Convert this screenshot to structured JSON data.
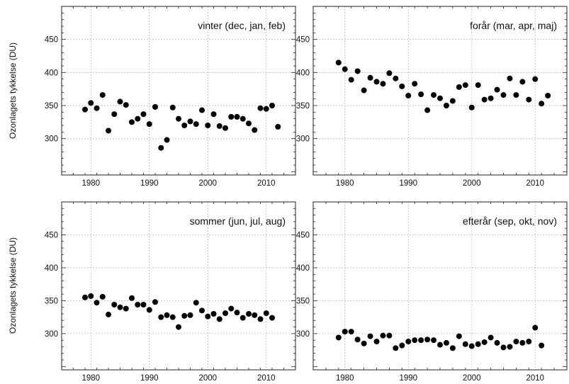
{
  "chart_data": [
    {
      "type": "scatter",
      "title": "vinter (dec, jan, feb)",
      "ylabel": "Ozonlagets tykkelse (DU)",
      "xlabel": "",
      "xlim": [
        1975,
        2015
      ],
      "ylim": [
        245,
        500
      ],
      "xticks": [
        1980,
        1990,
        2000,
        2010
      ],
      "yticks": [
        300,
        350,
        400,
        450
      ],
      "grid": true,
      "x": [
        1979,
        1980,
        1981,
        1982,
        1983,
        1984,
        1985,
        1986,
        1987,
        1988,
        1989,
        1990,
        1991,
        1992,
        1993,
        1994,
        1995,
        1996,
        1997,
        1998,
        1999,
        2000,
        2001,
        2002,
        2003,
        2004,
        2005,
        2006,
        2007,
        2008,
        2009,
        2010,
        2011,
        2012
      ],
      "y": [
        344,
        354,
        346,
        366,
        312,
        337,
        356,
        351,
        325,
        330,
        337,
        322,
        348,
        286,
        298,
        347,
        330,
        320,
        326,
        322,
        343,
        320,
        337,
        319,
        316,
        333,
        333,
        330,
        323,
        313,
        346,
        345,
        350,
        318
      ]
    },
    {
      "type": "scatter",
      "title": "forår (mar, apr, maj)",
      "ylabel": "",
      "xlabel": "",
      "xlim": [
        1975,
        2015
      ],
      "ylim": [
        245,
        500
      ],
      "xticks": [
        1980,
        1990,
        2000,
        2010
      ],
      "yticks": [
        300,
        350,
        400,
        450
      ],
      "grid": true,
      "x": [
        1979,
        1980,
        1981,
        1982,
        1983,
        1984,
        1985,
        1986,
        1987,
        1988,
        1989,
        1990,
        1991,
        1992,
        1993,
        1994,
        1995,
        1996,
        1997,
        1998,
        1999,
        2000,
        2001,
        2002,
        2003,
        2004,
        2005,
        2006,
        2007,
        2008,
        2009,
        2010,
        2011,
        2012
      ],
      "y": [
        415,
        405,
        389,
        402,
        373,
        392,
        386,
        383,
        399,
        391,
        379,
        365,
        383,
        367,
        343,
        366,
        361,
        350,
        357,
        378,
        381,
        347,
        381,
        359,
        361,
        374,
        366,
        391,
        366,
        386,
        359,
        390,
        353,
        365
      ]
    },
    {
      "type": "scatter",
      "title": "sommer (jun, jul, aug)",
      "ylabel": "Ozonlagets tykkelse (DU)",
      "xlabel": "",
      "xlim": [
        1975,
        2015
      ],
      "ylim": [
        245,
        500
      ],
      "xticks": [
        1980,
        1990,
        2000,
        2010
      ],
      "yticks": [
        300,
        350,
        400,
        450
      ],
      "grid": true,
      "x": [
        1979,
        1980,
        1981,
        1982,
        1983,
        1984,
        1985,
        1986,
        1987,
        1988,
        1989,
        1990,
        1991,
        1992,
        1993,
        1994,
        1995,
        1996,
        1997,
        1998,
        1999,
        2000,
        2001,
        2002,
        2003,
        2004,
        2005,
        2006,
        2007,
        2008,
        2009,
        2010,
        2011
      ],
      "y": [
        355,
        357,
        347,
        356,
        329,
        344,
        340,
        338,
        354,
        344,
        344,
        336,
        348,
        325,
        328,
        325,
        310,
        327,
        328,
        347,
        335,
        326,
        330,
        322,
        331,
        338,
        332,
        324,
        330,
        328,
        322,
        331,
        324
      ]
    },
    {
      "type": "scatter",
      "title": "efterår (sep, okt, nov)",
      "ylabel": "",
      "xlabel": "",
      "xlim": [
        1975,
        2015
      ],
      "ylim": [
        245,
        500
      ],
      "xticks": [
        1980,
        1990,
        2000,
        2010
      ],
      "yticks": [
        300,
        350,
        400,
        450
      ],
      "grid": true,
      "x": [
        1979,
        1980,
        1981,
        1982,
        1983,
        1984,
        1985,
        1986,
        1987,
        1988,
        1989,
        1990,
        1991,
        1992,
        1993,
        1994,
        1995,
        1996,
        1997,
        1998,
        1999,
        2000,
        2001,
        2002,
        2003,
        2004,
        2005,
        2006,
        2007,
        2008,
        2009,
        2010,
        2011
      ],
      "y": [
        294,
        303,
        303,
        291,
        285,
        296,
        288,
        297,
        297,
        278,
        282,
        288,
        290,
        290,
        291,
        290,
        283,
        286,
        278,
        296,
        284,
        281,
        284,
        287,
        294,
        286,
        279,
        280,
        288,
        286,
        288,
        309,
        282
      ]
    }
  ]
}
